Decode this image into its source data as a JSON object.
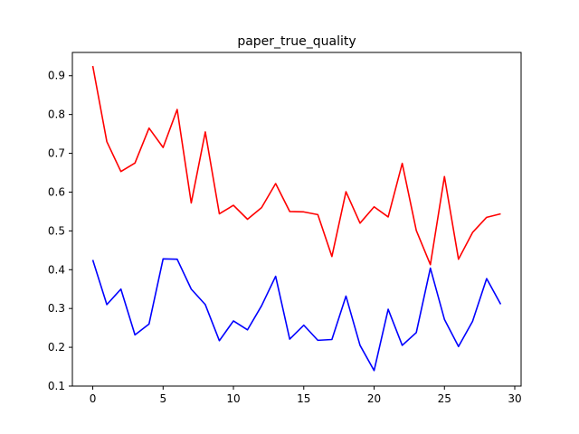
{
  "chart_data": {
    "type": "line",
    "title": "paper_true_quality",
    "xlabel": "",
    "ylabel": "",
    "xlim": [
      -1.45,
      30.45
    ],
    "ylim": [
      0.1,
      0.96
    ],
    "xticks": [
      0,
      5,
      10,
      15,
      20,
      25,
      30
    ],
    "yticks": [
      0.1,
      0.2,
      0.3,
      0.4,
      0.5,
      0.6,
      0.7,
      0.8,
      0.9
    ],
    "grid": false,
    "legend": "none",
    "x": [
      0,
      1,
      2,
      3,
      4,
      5,
      6,
      7,
      8,
      9,
      10,
      11,
      12,
      13,
      14,
      15,
      16,
      17,
      18,
      19,
      20,
      21,
      22,
      23,
      24,
      25,
      26,
      27,
      28,
      29
    ],
    "series": [
      {
        "color": "#ff0000",
        "values": [
          0.925,
          0.73,
          0.653,
          0.675,
          0.765,
          0.715,
          0.813,
          0.572,
          0.755,
          0.544,
          0.566,
          0.53,
          0.56,
          0.622,
          0.55,
          0.549,
          0.542,
          0.434,
          0.601,
          0.52,
          0.562,
          0.536,
          0.674,
          0.501,
          0.413,
          0.64,
          0.427,
          0.496,
          0.535,
          0.544
        ]
      },
      {
        "color": "#0000ff",
        "values": [
          0.425,
          0.31,
          0.35,
          0.232,
          0.26,
          0.428,
          0.427,
          0.35,
          0.31,
          0.217,
          0.268,
          0.245,
          0.307,
          0.383,
          0.221,
          0.257,
          0.218,
          0.22,
          0.332,
          0.205,
          0.14,
          0.298,
          0.205,
          0.238,
          0.404,
          0.272,
          0.202,
          0.267,
          0.377,
          0.311
        ]
      }
    ]
  }
}
